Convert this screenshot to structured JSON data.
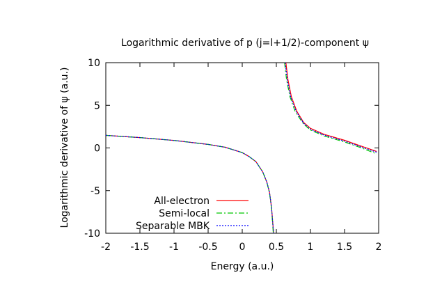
{
  "chart_data": {
    "type": "line",
    "title": "Logarithmic derivative of p (j=l+1/2)-component ψ",
    "xlabel": "Energy (a.u.)",
    "ylabel": "Logarithmic derivative of ψ (a.u.)",
    "xlim": [
      -2,
      2
    ],
    "ylim": [
      -10,
      10
    ],
    "x_ticks": [
      "-2",
      "-1.5",
      "-1",
      "-0.5",
      "0",
      "0.5",
      "1",
      "1.5",
      "2"
    ],
    "y_ticks": [
      "10",
      "5",
      "0",
      "-5",
      "-10"
    ],
    "grid": false,
    "legend_position": "bottom-left",
    "series": [
      {
        "name": "All-electron",
        "color": "#ff0000",
        "dash": "solid",
        "branches": [
          [
            [
              -2.0,
              1.48
            ],
            [
              -1.5,
              1.22
            ],
            [
              -1.0,
              0.88
            ],
            [
              -0.5,
              0.42
            ],
            [
              -0.25,
              0.08
            ],
            [
              0.0,
              -0.55
            ],
            [
              0.1,
              -1.0
            ],
            [
              0.2,
              -1.6
            ],
            [
              0.3,
              -2.8
            ],
            [
              0.36,
              -4.0
            ],
            [
              0.4,
              -5.2
            ],
            [
              0.43,
              -7.0
            ],
            [
              0.46,
              -10.0
            ]
          ],
          [
            [
              0.64,
              10.0
            ],
            [
              0.67,
              8.0
            ],
            [
              0.72,
              6.0
            ],
            [
              0.8,
              4.3
            ],
            [
              0.9,
              3.0
            ],
            [
              1.0,
              2.3
            ],
            [
              1.2,
              1.6
            ],
            [
              1.5,
              0.9
            ],
            [
              1.75,
              0.2
            ],
            [
              1.97,
              -0.4
            ]
          ]
        ]
      },
      {
        "name": "Semi-local",
        "color": "#00c800",
        "dash": "8 3 2 3",
        "branches": [
          [
            [
              -2.0,
              1.48
            ],
            [
              -1.5,
              1.22
            ],
            [
              -1.0,
              0.88
            ],
            [
              -0.5,
              0.42
            ],
            [
              -0.25,
              0.08
            ],
            [
              0.0,
              -0.55
            ],
            [
              0.1,
              -1.0
            ],
            [
              0.2,
              -1.6
            ],
            [
              0.3,
              -2.8
            ],
            [
              0.36,
              -4.0
            ],
            [
              0.4,
              -5.3
            ],
            [
              0.43,
              -7.1
            ],
            [
              0.455,
              -10.0
            ]
          ],
          [
            [
              0.62,
              10.0
            ],
            [
              0.65,
              8.0
            ],
            [
              0.7,
              6.0
            ],
            [
              0.78,
              4.2
            ],
            [
              0.9,
              2.8
            ],
            [
              1.0,
              2.1
            ],
            [
              1.2,
              1.4
            ],
            [
              1.5,
              0.7
            ],
            [
              1.75,
              0.0
            ],
            [
              1.97,
              -0.7
            ]
          ]
        ]
      },
      {
        "name": "Separable MBK",
        "color": "#0000ff",
        "dash": "2 2",
        "branches": [
          [
            [
              -2.0,
              1.48
            ],
            [
              -1.5,
              1.22
            ],
            [
              -1.0,
              0.88
            ],
            [
              -0.5,
              0.42
            ],
            [
              -0.25,
              0.08
            ],
            [
              0.0,
              -0.55
            ],
            [
              0.1,
              -1.0
            ],
            [
              0.2,
              -1.6
            ],
            [
              0.3,
              -2.8
            ],
            [
              0.36,
              -4.0
            ],
            [
              0.4,
              -5.2
            ],
            [
              0.43,
              -7.0
            ],
            [
              0.46,
              -10.0
            ]
          ],
          [
            [
              0.63,
              10.0
            ],
            [
              0.66,
              8.0
            ],
            [
              0.71,
              6.0
            ],
            [
              0.79,
              4.3
            ],
            [
              0.9,
              2.9
            ],
            [
              1.0,
              2.2
            ],
            [
              1.2,
              1.5
            ],
            [
              1.5,
              0.8
            ],
            [
              1.75,
              0.1
            ],
            [
              1.97,
              -0.5
            ]
          ]
        ]
      }
    ]
  }
}
